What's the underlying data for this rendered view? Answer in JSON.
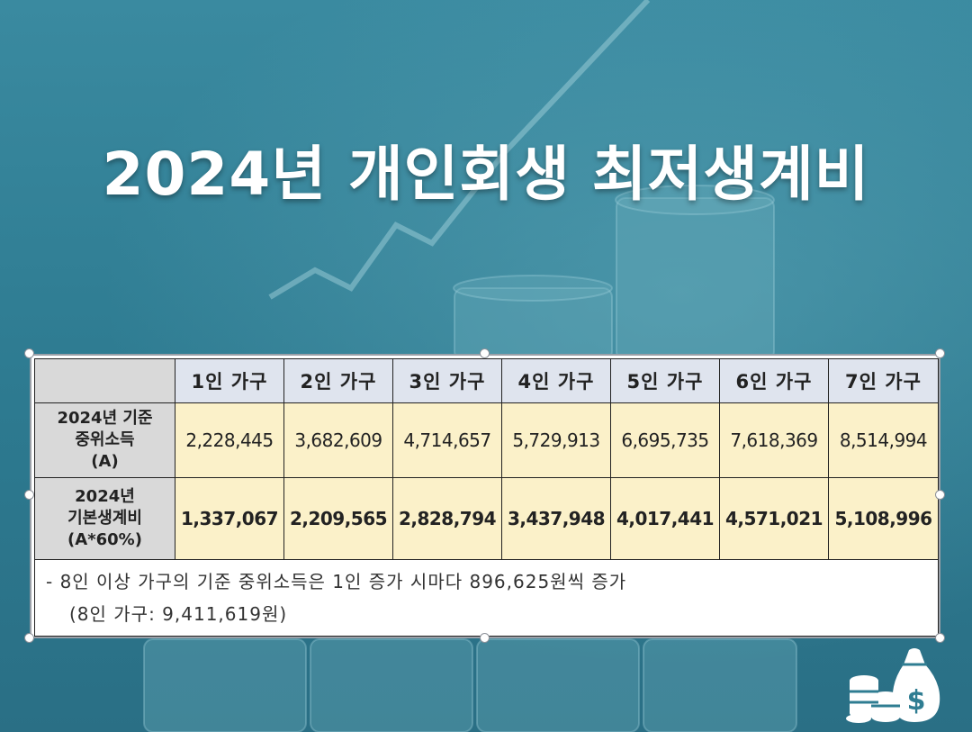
{
  "title": "2024년 개인회생 최저생계비",
  "table": {
    "headers": [
      "1인 가구",
      "2인 가구",
      "3인 가구",
      "4인 가구",
      "5인 가구",
      "6인 가구",
      "7인 가구"
    ],
    "rows": [
      {
        "label_lines": [
          "2024년 기준",
          "중위소득",
          "(A)"
        ],
        "values": [
          "2,228,445",
          "3,682,609",
          "4,714,657",
          "5,729,913",
          "6,695,735",
          "7,618,369",
          "8,514,994"
        ]
      },
      {
        "label_lines": [
          "2024년",
          "기본생계비",
          "(A*60%)"
        ],
        "values": [
          "1,337,067",
          "2,209,565",
          "2,828,794",
          "3,437,948",
          "4,017,441",
          "4,571,021",
          "5,108,996"
        ]
      }
    ],
    "note_line1": "- 8인 이상 가구의 기준 중위소득은 1인 증가 시마다 896,625원씩 증가",
    "note_line2": "(8인 가구: 9,411,619원)"
  },
  "decor": {
    "background_color": "#2f7d92",
    "value_cell_color": "#fbf1c9",
    "header_cell_color": "#dfe4ee",
    "icon": "money-bag-coins-icon"
  }
}
